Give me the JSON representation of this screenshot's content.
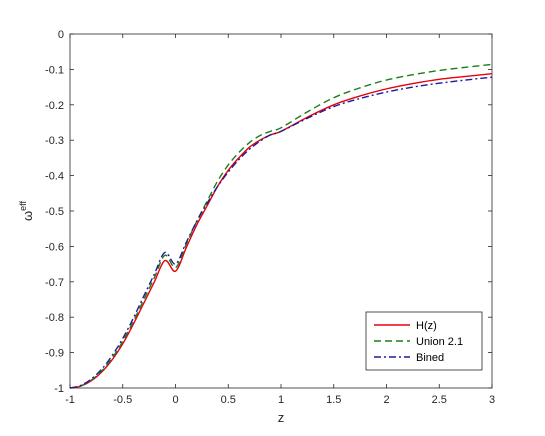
{
  "chart_data": {
    "type": "line",
    "xlabel": "z",
    "ylabel": {
      "base": "ω",
      "sup": "eff"
    },
    "xlim": [
      -1,
      3
    ],
    "ylim": [
      -1,
      0
    ],
    "xticks": [
      "-1",
      "-0.5",
      "0",
      "0.5",
      "1",
      "1.5",
      "2",
      "2.5",
      "3"
    ],
    "yticks": [
      "-1",
      "-0.9",
      "-0.8",
      "-0.7",
      "-0.6",
      "-0.5",
      "-0.4",
      "-0.3",
      "-0.2",
      "-0.1",
      "0"
    ],
    "grid": false,
    "legend_position": "bottom-right",
    "x": [
      -1,
      -0.9,
      -0.8,
      -0.7,
      -0.6,
      -0.5,
      -0.4,
      -0.3,
      -0.2,
      -0.1,
      0,
      0.1,
      0.2,
      0.3,
      0.4,
      0.5,
      0.6,
      0.7,
      0.8,
      0.9,
      1.0,
      1.25,
      1.5,
      1.75,
      2.0,
      2.25,
      2.5,
      2.75,
      3.0
    ],
    "series": [
      {
        "name": "H(z)",
        "color": "#e8000b",
        "dash": "solid",
        "values": [
          -1.0,
          -0.995,
          -0.98,
          -0.955,
          -0.92,
          -0.875,
          -0.82,
          -0.76,
          -0.7,
          -0.64,
          -0.67,
          -0.605,
          -0.54,
          -0.485,
          -0.43,
          -0.385,
          -0.35,
          -0.32,
          -0.3,
          -0.285,
          -0.275,
          -0.235,
          -0.2,
          -0.175,
          -0.155,
          -0.14,
          -0.128,
          -0.12,
          -0.112
        ]
      },
      {
        "name": "Union 2.1",
        "color": "#1a7f1a",
        "dash": "dashed",
        "values": [
          -1.0,
          -0.994,
          -0.978,
          -0.952,
          -0.915,
          -0.868,
          -0.812,
          -0.75,
          -0.688,
          -0.625,
          -0.66,
          -0.595,
          -0.53,
          -0.472,
          -0.415,
          -0.37,
          -0.335,
          -0.307,
          -0.287,
          -0.275,
          -0.265,
          -0.22,
          -0.18,
          -0.152,
          -0.13,
          -0.115,
          -0.103,
          -0.094,
          -0.086
        ]
      },
      {
        "name": "Bined",
        "color": "#1c1c9a",
        "dash": "dashdot",
        "values": [
          -1.0,
          -0.993,
          -0.975,
          -0.947,
          -0.908,
          -0.86,
          -0.803,
          -0.74,
          -0.678,
          -0.617,
          -0.65,
          -0.59,
          -0.53,
          -0.478,
          -0.43,
          -0.39,
          -0.355,
          -0.326,
          -0.303,
          -0.285,
          -0.275,
          -0.238,
          -0.205,
          -0.182,
          -0.164,
          -0.15,
          -0.139,
          -0.13,
          -0.122
        ]
      }
    ]
  }
}
